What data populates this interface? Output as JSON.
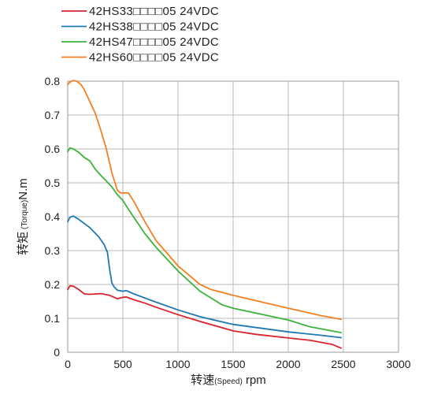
{
  "chart_data": {
    "type": "line",
    "xlabel": {
      "main": "转速",
      "sub": "(Speed)",
      "unit": " rpm"
    },
    "ylabel": {
      "main": "转矩",
      "sub": " (Torque)",
      "unit": "N.m"
    },
    "xlim": [
      0,
      3000
    ],
    "ylim": [
      0,
      0.8
    ],
    "xticks": [
      0,
      500,
      1000,
      1500,
      2000,
      2500,
      3000
    ],
    "yticks": [
      0,
      0.1,
      0.2,
      0.3,
      0.4,
      0.5,
      0.6,
      0.7,
      0.8
    ],
    "xtick_labels": [
      "0",
      "500",
      "1000",
      "1500",
      "2000",
      "2500",
      "3000"
    ],
    "ytick_labels": [
      "0",
      "0.1",
      "0.2",
      "0.3",
      "0.4",
      "0.5",
      "0.6",
      "0.7",
      "0.8"
    ],
    "grid": true,
    "legend_position": "top-left",
    "series": [
      {
        "name": "42HS33□□□□05   24VDC",
        "color": "#d9232d",
        "x": [
          0,
          20,
          50,
          100,
          150,
          200,
          300,
          380,
          450,
          500,
          530,
          600,
          700,
          800,
          1000,
          1200,
          1500,
          1700,
          2000,
          2200,
          2400,
          2480
        ],
        "y": [
          0.185,
          0.196,
          0.195,
          0.185,
          0.172,
          0.171,
          0.173,
          0.168,
          0.158,
          0.162,
          0.163,
          0.155,
          0.145,
          0.133,
          0.111,
          0.091,
          0.063,
          0.053,
          0.042,
          0.035,
          0.023,
          0.012
        ]
      },
      {
        "name": "42HS38□□□□05   24VDC",
        "color": "#1f77b4",
        "x": [
          0,
          20,
          50,
          100,
          200,
          280,
          330,
          360,
          380,
          400,
          420,
          450,
          500,
          530,
          600,
          800,
          1000,
          1200,
          1500,
          2000,
          2300,
          2480
        ],
        "y": [
          0.385,
          0.398,
          0.402,
          0.392,
          0.368,
          0.341,
          0.318,
          0.295,
          0.245,
          0.205,
          0.193,
          0.183,
          0.18,
          0.182,
          0.172,
          0.148,
          0.125,
          0.105,
          0.082,
          0.06,
          0.05,
          0.043
        ]
      },
      {
        "name": "42HS47□□□□05   24VDC",
        "color": "#3bb33b",
        "x": [
          0,
          20,
          50,
          100,
          150,
          200,
          250,
          300,
          350,
          400,
          450,
          500,
          550,
          600,
          700,
          800,
          1000,
          1200,
          1400,
          1500,
          1700,
          2000,
          2200,
          2480
        ],
        "y": [
          0.592,
          0.603,
          0.6,
          0.59,
          0.575,
          0.565,
          0.54,
          0.522,
          0.505,
          0.488,
          0.465,
          0.448,
          0.422,
          0.398,
          0.35,
          0.31,
          0.24,
          0.18,
          0.14,
          0.13,
          0.116,
          0.095,
          0.075,
          0.058
        ]
      },
      {
        "name": "42HS60□□□□05   24VDC",
        "color": "#f47f20",
        "x": [
          0,
          20,
          50,
          80,
          120,
          150,
          200,
          250,
          300,
          350,
          400,
          450,
          480,
          500,
          550,
          600,
          700,
          800,
          1000,
          1200,
          1300,
          1500,
          2000,
          2300,
          2480
        ],
        "y": [
          0.79,
          0.797,
          0.802,
          0.8,
          0.79,
          0.775,
          0.74,
          0.705,
          0.655,
          0.6,
          0.53,
          0.478,
          0.47,
          0.47,
          0.47,
          0.445,
          0.385,
          0.33,
          0.255,
          0.2,
          0.185,
          0.168,
          0.13,
          0.108,
          0.097
        ]
      }
    ]
  }
}
